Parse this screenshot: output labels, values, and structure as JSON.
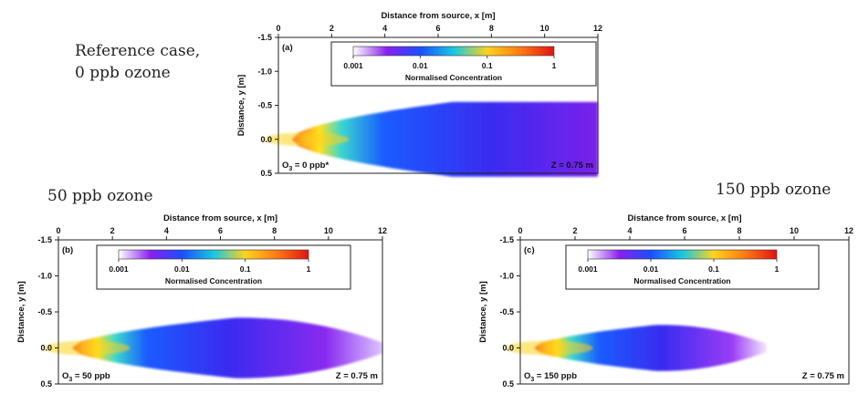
{
  "captions": {
    "ref_line1": "Reference case,",
    "ref_line2": "0 ppb ozone",
    "o50": "50 ppb ozone",
    "o150": "150 ppb ozone"
  },
  "colorbar": {
    "title": "Normalised Concentration",
    "stops": [
      "#ffffff",
      "#8a1ff0",
      "#1a4fff",
      "#18c8e0",
      "#ffd21c",
      "#ff7a14",
      "#e01414"
    ]
  },
  "chart_data": [
    {
      "type": "heatmap",
      "panel": "(a)",
      "xlabel": "Distance from source, x [m]",
      "ylabel": "Distance, y [m]",
      "xlim": [
        0,
        12
      ],
      "ylim": [
        -1.5,
        0.5
      ],
      "xticks": [
        "0",
        "2",
        "4",
        "6",
        "8",
        "10",
        "12"
      ],
      "yticks": [
        "-1.5",
        "-1.0",
        "-0.5",
        "0.0",
        "0.5"
      ],
      "colorbar_label": "Normalised Concentration",
      "colorbar_ticks": [
        "0.001",
        "0.01",
        "0.1",
        "1"
      ],
      "ozone_label": "O3 = 0 ppb*",
      "ozone_species": "O",
      "ozone_sub": "3",
      "ozone_text": " = 0 ppb*",
      "height_label": "Z = 0.75 m",
      "plume": {
        "source_x": 0.5,
        "plume_end_x": 12,
        "max_halfwidth_m": 0.55
      }
    },
    {
      "type": "heatmap",
      "panel": "(b)",
      "xlabel": "Distance from source, x [m]",
      "ylabel": "Distance, y [m]",
      "xlim": [
        0,
        12
      ],
      "ylim": [
        -1.5,
        0.5
      ],
      "xticks": [
        "0",
        "2",
        "4",
        "6",
        "8",
        "10",
        "12"
      ],
      "yticks": [
        "-1.5",
        "-1.0",
        "-0.5",
        "0.0",
        "0.5"
      ],
      "colorbar_label": "Normalised Concentration",
      "colorbar_ticks": [
        "0.001",
        "0.01",
        "0.1",
        "1"
      ],
      "ozone_label": "O3 = 50 ppb",
      "ozone_species": "O",
      "ozone_sub": "3",
      "ozone_text": " = 50 ppb",
      "height_label": "Z = 0.75 m",
      "plume": {
        "source_x": 0.5,
        "plume_end_x": 12,
        "max_halfwidth_m": 0.42
      }
    },
    {
      "type": "heatmap",
      "panel": "(c)",
      "xlabel": "Distance from source, x [m]",
      "ylabel": "Distance, y [m]",
      "xlim": [
        0,
        12
      ],
      "ylim": [
        -1.5,
        0.5
      ],
      "xticks": [
        "0",
        "2",
        "4",
        "6",
        "8",
        "10",
        "12"
      ],
      "yticks": [
        "-1.5",
        "-1.0",
        "-0.5",
        "0.0",
        "0.5"
      ],
      "colorbar_label": "Normalised Concentration",
      "colorbar_ticks": [
        "0.001",
        "0.01",
        "0.1",
        "1"
      ],
      "ozone_label": "O3 = 150 ppb",
      "ozone_species": "O",
      "ozone_sub": "3",
      "ozone_text": " = 150 ppb",
      "height_label": "Z = 0.75 m",
      "plume": {
        "source_x": 0.5,
        "plume_end_x": 9.0,
        "max_halfwidth_m": 0.32
      }
    }
  ]
}
